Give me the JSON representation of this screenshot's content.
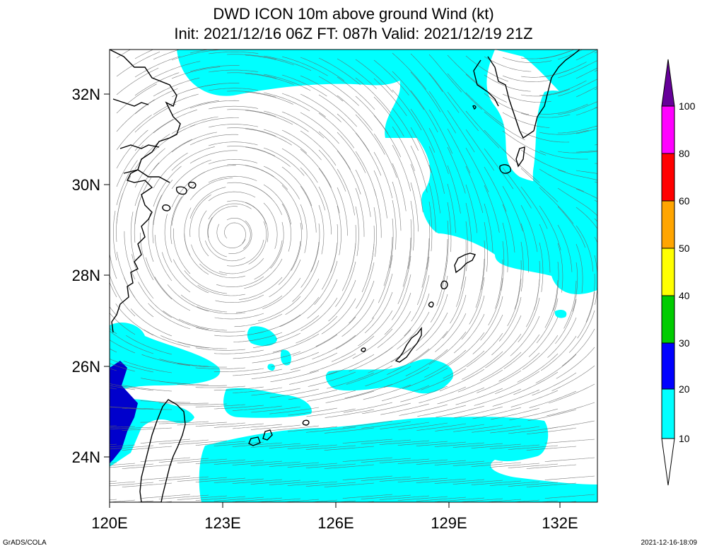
{
  "title_line1": "DWD ICON 10m above ground Wind (kt)",
  "title_line2": "Init: 2021/12/16 06Z  FT: 087h  Valid: 2021/12/19 21Z",
  "lat_labels": [
    "32N",
    "30N",
    "28N",
    "26N",
    "24N"
  ],
  "lon_labels": [
    "120E",
    "123E",
    "126E",
    "129E",
    "132E"
  ],
  "colorbar": {
    "levels": [
      "10",
      "20",
      "30",
      "40",
      "50",
      "60",
      "80",
      "100"
    ],
    "colors": [
      "#00ffff",
      "#0000ff",
      "#00cc00",
      "#ffff00",
      "#ffa500",
      "#ff0000",
      "#ff00ff",
      "#660099"
    ]
  },
  "wind_shading": {
    "light": "#00ffff",
    "strong": "#0000cc"
  },
  "footer_left": "GrADS/COLA",
  "footer_right": "2021-12-16-18:09"
}
